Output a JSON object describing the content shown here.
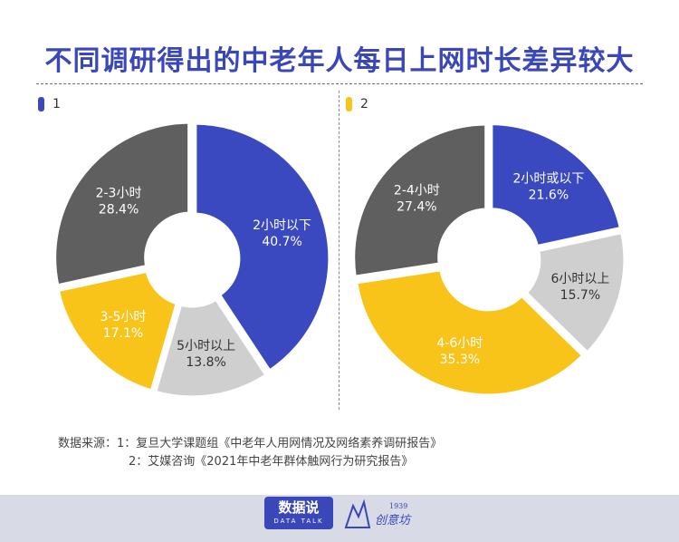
{
  "title": "不同调研得出的中老年人每日上网时长差异较大",
  "colors": {
    "blue": "#3b49c0",
    "dark_gray": "#5f5f5f",
    "yellow": "#f9c41a",
    "light_gray": "#cfcfcf",
    "title": "#3a47b8"
  },
  "chart_data": [
    {
      "type": "pie",
      "legend_label": "1",
      "legend_color": "#3b49c0",
      "slices": [
        {
          "label": "2小时以下",
          "value": 40.7,
          "value_text": "40.7%",
          "color": "#3b49c0"
        },
        {
          "label": "5小时以上",
          "value": 13.8,
          "value_text": "13.8%",
          "color": "#cfcfcf"
        },
        {
          "label": "3-5小时",
          "value": 17.1,
          "value_text": "17.1%",
          "color": "#f9c41a"
        },
        {
          "label": "2-3小时",
          "value": 28.4,
          "value_text": "28.4%",
          "color": "#5f5f5f"
        }
      ]
    },
    {
      "type": "pie",
      "legend_label": "2",
      "legend_color": "#f9c41a",
      "slices": [
        {
          "label": "2小时或以下",
          "value": 21.6,
          "value_text": "21.6%",
          "color": "#3b49c0"
        },
        {
          "label": "6小时以上",
          "value": 15.7,
          "value_text": "15.7%",
          "color": "#cfcfcf"
        },
        {
          "label": "4-6小时",
          "value": 35.3,
          "value_text": "35.3%",
          "color": "#f9c41a"
        },
        {
          "label": "2-4小时",
          "value": 27.4,
          "value_text": "27.4%",
          "color": "#5f5f5f"
        }
      ]
    }
  ],
  "source": {
    "line1": "数据来源：1：复旦大学课题组《中老年人用网情况及网络素养调研报告》",
    "line2": "2：艾媒咨询《2021年中老年群体触网行为研究报告》"
  },
  "footer": {
    "brand_cn": "数据说",
    "brand_en": "DATA TALK",
    "partner_year": "1939",
    "partner_name": "创意坊"
  }
}
